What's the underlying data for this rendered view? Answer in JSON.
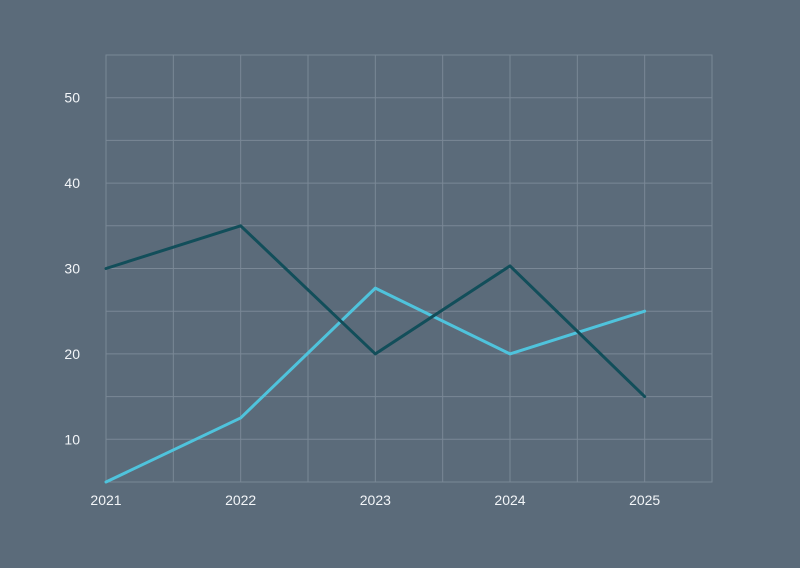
{
  "chart_data": {
    "type": "line",
    "title": "",
    "xlabel": "",
    "ylabel": "",
    "x": [
      "2021",
      "2022",
      "2023",
      "2024",
      "2025"
    ],
    "xlim": [
      2021,
      2025.5
    ],
    "ylim": [
      5,
      55
    ],
    "y_ticks": [
      "10",
      "20",
      "30",
      "40",
      "50"
    ],
    "grid": true,
    "legend": "none",
    "series": [
      {
        "color": "#4fc3dc",
        "values": [
          5,
          12.5,
          27.7,
          20,
          25
        ]
      },
      {
        "color": "#124e5a",
        "values": [
          30,
          35,
          20,
          30.3,
          15
        ]
      }
    ]
  }
}
